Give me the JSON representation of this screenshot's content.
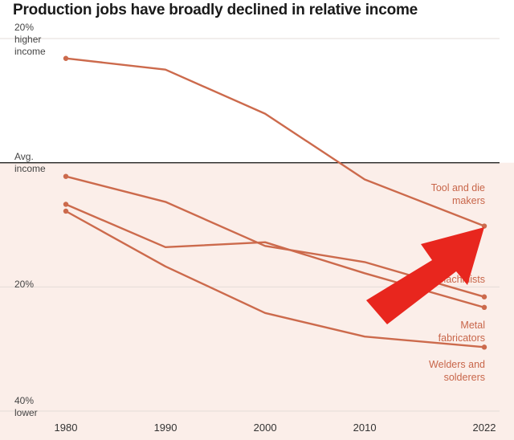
{
  "chart_data": {
    "type": "line",
    "title": "Production jobs have broadly declined in relative income",
    "x": [
      1980,
      1990,
      2000,
      2010,
      2022
    ],
    "xtick_labels": [
      "1980",
      "1990",
      "2000",
      "2010",
      "2022"
    ],
    "ylim": [
      -40,
      20
    ],
    "ylabel": "",
    "ytick_labels": [
      {
        "value": 20,
        "lines": [
          "20%",
          "higher",
          "income"
        ]
      },
      {
        "value": 0,
        "lines": [
          "Avg.",
          "income"
        ]
      },
      {
        "value": -20,
        "lines": [
          "20%"
        ]
      },
      {
        "value": -40,
        "lines": [
          "40%",
          "lower"
        ]
      }
    ],
    "grid": true,
    "series": [
      {
        "name": "Tool and die makers",
        "label_lines": [
          "Tool and die",
          "makers"
        ],
        "values": [
          16.8,
          15.0,
          7.9,
          -2.7,
          -10.2
        ]
      },
      {
        "name": "Machinists",
        "label_lines": [
          "Machinists"
        ],
        "values": [
          -2.2,
          -6.3,
          -13.4,
          -16.0,
          -21.6
        ]
      },
      {
        "name": "Metal fabricators",
        "label_lines": [
          "Metal",
          "fabricators"
        ],
        "values": [
          -6.7,
          -13.6,
          -12.8,
          -17.8,
          -23.3
        ]
      },
      {
        "name": "Welders and solderers",
        "label_lines": [
          "Welders and",
          "solderers"
        ],
        "values": [
          -7.8,
          -16.7,
          -24.2,
          -28.0,
          -29.7
        ]
      }
    ],
    "annotation": "red arrow pointing up-right toward the 2022 Tool and die makers point",
    "colors": {
      "line": "#cc6a4c",
      "label": "#c8664a",
      "avg_line": "#222222",
      "below_avg_fill": "#fbeee9",
      "arrow": "#e8261e",
      "grid": "#e3dcd8"
    }
  }
}
